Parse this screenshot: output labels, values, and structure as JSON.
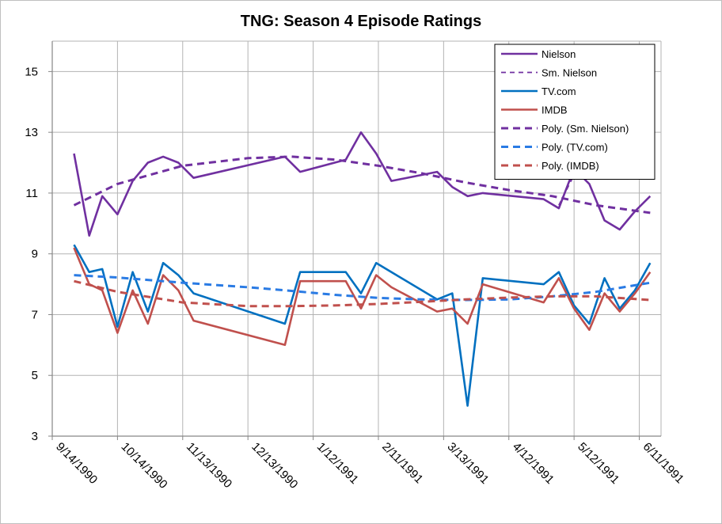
{
  "chart_data": {
    "type": "line",
    "title": "TNG: Season 4 Episode Ratings",
    "xlabel": "",
    "ylabel": "",
    "ylim": [
      3,
      16
    ],
    "yticks": [
      3,
      5,
      7,
      9,
      11,
      13,
      15
    ],
    "x_range": [
      0,
      280
    ],
    "x_ticks": [
      {
        "label": "9/14/1990",
        "x": 0
      },
      {
        "label": "10/14/1990",
        "x": 30
      },
      {
        "label": "11/13/1990",
        "x": 60
      },
      {
        "label": "12/13/1990",
        "x": 90
      },
      {
        "label": "1/12/1991",
        "x": 120
      },
      {
        "label": "2/11/1991",
        "x": 150
      },
      {
        "label": "3/13/1991",
        "x": 180
      },
      {
        "label": "4/12/1991",
        "x": 210
      },
      {
        "label": "5/12/1991",
        "x": 240
      },
      {
        "label": "6/11/1991",
        "x": 270
      }
    ],
    "grid": "both",
    "legend_position": "top-right",
    "colors": {
      "Nielson": "#7030a0",
      "TV.com": "#0070c0",
      "IMDB": "#c0504d",
      "Poly. (TV.com)": "#2a7be4"
    },
    "series": [
      {
        "name": "Nielson",
        "style": "solid",
        "x": [
          10,
          17,
          23,
          30,
          37,
          44,
          51,
          58,
          65,
          107,
          114,
          135,
          142,
          149,
          156,
          177,
          184,
          191,
          198,
          226,
          233,
          240,
          247,
          254,
          261,
          268,
          275
        ],
        "y": [
          12.3,
          9.6,
          10.9,
          10.3,
          11.4,
          12.0,
          12.2,
          12.0,
          11.5,
          12.2,
          11.7,
          12.1,
          13.0,
          12.3,
          11.4,
          11.7,
          11.2,
          10.9,
          11.0,
          10.8,
          10.5,
          11.8,
          11.3,
          10.1,
          9.8,
          10.4,
          10.9
        ]
      },
      {
        "name": "Sm. Nielson",
        "style": "dash",
        "x": [
          233,
          240
        ],
        "y": [
          10.6,
          11.6
        ]
      },
      {
        "name": "TV.com",
        "style": "solid",
        "x": [
          10,
          17,
          23,
          30,
          37,
          44,
          51,
          58,
          65,
          107,
          114,
          135,
          142,
          149,
          156,
          177,
          184,
          191,
          198,
          226,
          233,
          240,
          247,
          254,
          261,
          268,
          275
        ],
        "y": [
          9.3,
          8.4,
          8.5,
          6.6,
          8.4,
          7.1,
          8.7,
          8.3,
          7.7,
          6.7,
          8.4,
          8.4,
          7.7,
          8.7,
          8.4,
          7.5,
          7.7,
          4.0,
          8.2,
          8.0,
          8.4,
          7.3,
          6.7,
          8.2,
          7.2,
          7.8,
          8.7
        ]
      },
      {
        "name": "IMDB",
        "style": "solid",
        "x": [
          10,
          17,
          23,
          30,
          37,
          44,
          51,
          58,
          65,
          107,
          114,
          135,
          142,
          149,
          156,
          177,
          184,
          191,
          198,
          226,
          233,
          240,
          247,
          254,
          261,
          268,
          275
        ],
        "y": [
          9.2,
          8.0,
          7.8,
          6.4,
          7.8,
          6.7,
          8.3,
          7.8,
          6.8,
          6.0,
          8.1,
          8.1,
          7.2,
          8.3,
          7.9,
          7.1,
          7.2,
          6.7,
          8.0,
          7.4,
          8.2,
          7.2,
          6.5,
          7.7,
          7.1,
          7.7,
          8.4
        ]
      },
      {
        "name": "Poly. (Sm. Nielson)",
        "style": "dash",
        "x": [
          10,
          30,
          60,
          90,
          110,
          130,
          150,
          170,
          190,
          210,
          230,
          250,
          275
        ],
        "y": [
          10.6,
          11.3,
          11.9,
          12.15,
          12.2,
          12.1,
          11.9,
          11.65,
          11.35,
          11.1,
          10.9,
          10.6,
          10.35
        ]
      },
      {
        "name": "Poly. (TV.com)",
        "style": "dash",
        "x": [
          10,
          30,
          60,
          90,
          110,
          130,
          150,
          170,
          190,
          210,
          230,
          250,
          275
        ],
        "y": [
          8.3,
          8.22,
          8.05,
          7.9,
          7.78,
          7.65,
          7.55,
          7.5,
          7.48,
          7.5,
          7.6,
          7.75,
          8.05
        ]
      },
      {
        "name": "Poly. (IMDB)",
        "style": "dash",
        "x": [
          10,
          30,
          60,
          90,
          110,
          130,
          150,
          170,
          190,
          210,
          230,
          250,
          275
        ],
        "y": [
          8.1,
          7.75,
          7.4,
          7.28,
          7.28,
          7.3,
          7.35,
          7.42,
          7.5,
          7.56,
          7.6,
          7.6,
          7.48
        ]
      }
    ]
  }
}
